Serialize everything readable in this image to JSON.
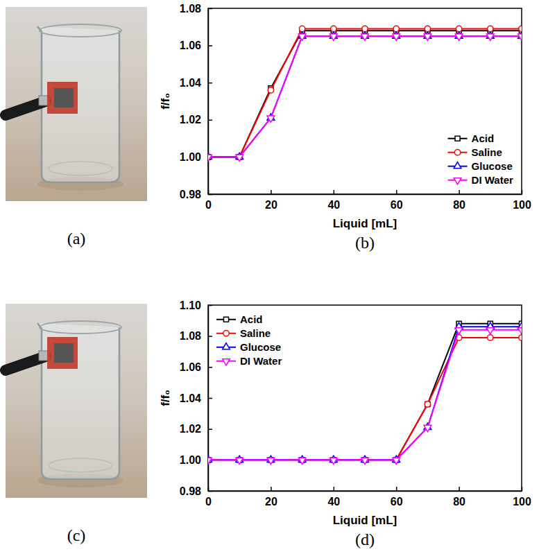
{
  "images": [
    {
      "label": "(a)"
    },
    {
      "label": "(c)"
    }
  ],
  "chart_data": [
    {
      "type": "line",
      "panel_label": "(b)",
      "x_label": "Liquid [mL]",
      "y_label": "f/f₀",
      "x": [
        0,
        10,
        20,
        30,
        40,
        50,
        60,
        70,
        80,
        90,
        100
      ],
      "xlim": [
        0,
        100
      ],
      "xticks": [
        0,
        20,
        40,
        60,
        80,
        100
      ],
      "ylim": [
        0.98,
        1.08
      ],
      "yticks": [
        0.98,
        {
          "value": 1,
          "label": "1.00"
        },
        1.02,
        1.04,
        1.06,
        1.08
      ],
      "legend": "lower right",
      "series": [
        {
          "name": "Acid",
          "color": "#000000",
          "marker": "square",
          "values": [
            1,
            1,
            1.037,
            1.068,
            1.068,
            1.068,
            1.068,
            1.068,
            1.068,
            1.068,
            1.068
          ]
        },
        {
          "name": "Saline",
          "color": "#ff0000",
          "marker": "circle",
          "values": [
            1,
            1,
            1.036,
            1.069,
            1.069,
            1.069,
            1.069,
            1.069,
            1.069,
            1.069,
            1.069
          ]
        },
        {
          "name": "Glucose",
          "color": "#0000ff",
          "marker": "triangle-up",
          "values": [
            1,
            1,
            1.021,
            1.065,
            1.065,
            1.065,
            1.065,
            1.065,
            1.065,
            1.065,
            1.065
          ]
        },
        {
          "name": "DI Water",
          "color": "#ff00ff",
          "marker": "triangle-down",
          "values": [
            1,
            1,
            1.021,
            1.065,
            1.065,
            1.065,
            1.065,
            1.065,
            1.065,
            1.065,
            1.065
          ]
        }
      ]
    },
    {
      "type": "line",
      "panel_label": "(d)",
      "x_label": "Liquid [mL]",
      "y_label": "f/f₀",
      "x": [
        0,
        10,
        20,
        30,
        40,
        50,
        60,
        70,
        80,
        90,
        100
      ],
      "xlim": [
        0,
        100
      ],
      "xticks": [
        0,
        20,
        40,
        60,
        80,
        100
      ],
      "ylim": [
        0.98,
        1.1
      ],
      "yticks": [
        0.98,
        {
          "value": 1,
          "label": "1.00"
        },
        1.02,
        1.04,
        1.06,
        1.08,
        {
          "value": 1.1,
          "label": "1.10"
        }
      ],
      "legend": "upper left",
      "series": [
        {
          "name": "Acid",
          "color": "#000000",
          "marker": "square",
          "values": [
            1,
            1,
            1,
            1,
            1,
            1,
            1,
            1.036,
            1.088,
            1.088,
            1.088
          ]
        },
        {
          "name": "Saline",
          "color": "#ff0000",
          "marker": "circle",
          "values": [
            1,
            1,
            1,
            1,
            1,
            1,
            1,
            1.036,
            1.079,
            1.079,
            1.079
          ]
        },
        {
          "name": "Glucose",
          "color": "#0000ff",
          "marker": "triangle-up",
          "values": [
            1,
            1,
            1,
            1,
            1,
            1,
            1,
            1.021,
            1.086,
            1.086,
            1.086
          ]
        },
        {
          "name": "DI Water",
          "color": "#ff00ff",
          "marker": "triangle-down",
          "values": [
            1,
            1,
            1,
            1,
            1,
            1,
            1,
            1.021,
            1.084,
            1.084,
            1.084
          ]
        }
      ]
    }
  ]
}
